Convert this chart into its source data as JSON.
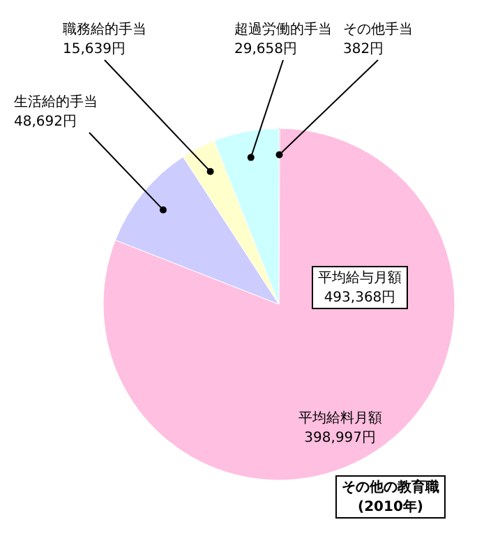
{
  "chart_data": {
    "type": "pie",
    "title": "その他の教育職\n(2010年)",
    "categories": [
      "その他手当",
      "平均給料月額",
      "生活給的手当",
      "職務給的手当",
      "超過労働的手当"
    ],
    "values": [
      382,
      398997,
      48692,
      15639,
      29658
    ],
    "value_labels": [
      "382円",
      "398,997円",
      "48,692円",
      "15,639円",
      "29,658円"
    ],
    "colors": [
      "#ffffff",
      "#ffbfe0",
      "#ccccff",
      "#ffffcc",
      "#ccffff"
    ],
    "annotations": [
      "平均給与月額\n493,368円"
    ]
  }
}
